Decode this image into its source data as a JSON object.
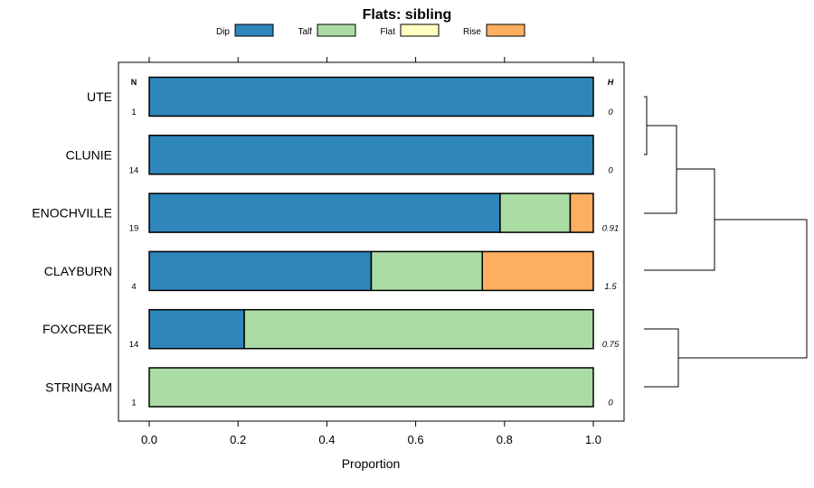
{
  "chart_data": {
    "type": "bar",
    "stacked": true,
    "orientation": "horizontal",
    "title": "Flats: sibling",
    "xlabel": "Proportion",
    "xlim": [
      0,
      1
    ],
    "ticks": [
      0.0,
      0.2,
      0.4,
      0.6,
      0.8,
      1.0
    ],
    "tick_labels": [
      "0.0",
      "0.2",
      "0.4",
      "0.6",
      "0.8",
      "1.0"
    ],
    "legend": [
      {
        "name": "Dip",
        "color": "#2e86bb"
      },
      {
        "name": "Talf",
        "color": "#abdca4"
      },
      {
        "name": "Flat",
        "color": "#ffffbf"
      },
      {
        "name": "Rise",
        "color": "#fdae61"
      }
    ],
    "n_header": "N",
    "h_header": "H",
    "categories": [
      "UTE",
      "CLUNIE",
      "ENOCHVILLE",
      "CLAYBURN",
      "FOXCREEK",
      "STRINGAM"
    ],
    "n": [
      "1",
      "14",
      "19",
      "4",
      "14",
      "1"
    ],
    "h": [
      "0",
      "0",
      "0.91",
      "1.5",
      "0.75",
      "0"
    ],
    "series": [
      {
        "name": "Dip",
        "values": [
          1.0,
          1.0,
          0.79,
          0.5,
          0.214,
          0.0
        ]
      },
      {
        "name": "Talf",
        "values": [
          0.0,
          0.0,
          0.158,
          0.25,
          0.786,
          1.0
        ]
      },
      {
        "name": "Flat",
        "values": [
          0.0,
          0.0,
          0.0,
          0.0,
          0.0,
          0.0
        ]
      },
      {
        "name": "Rise",
        "values": [
          0.0,
          0.0,
          0.052,
          0.25,
          0.0,
          0.0
        ]
      }
    ],
    "dendrogram": {
      "merges": [
        [
          "UTE",
          "CLUNIE"
        ],
        [
          "UTE+CLUNIE",
          "ENOCHVILLE"
        ],
        [
          "UTE+CLUNIE+ENOCHVILLE",
          "CLAYBURN"
        ],
        [
          "FOXCREEK",
          "STRINGAM"
        ],
        [
          "UTE+CLUNIE+ENOCHVILLE+CLAYBURN",
          "FOXCREEK+STRINGAM"
        ]
      ]
    }
  }
}
